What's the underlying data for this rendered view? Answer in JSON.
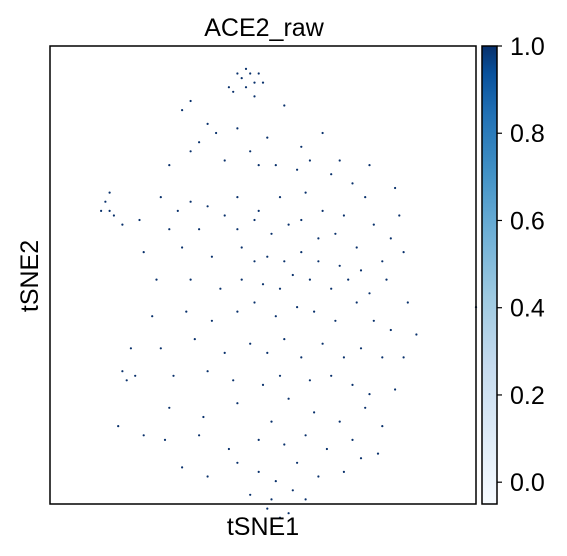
{
  "chart_data": {
    "type": "scatter",
    "title": "ACE2_raw",
    "xlabel": "tSNE1",
    "ylabel": "tSNE2",
    "x_ticks_shown": false,
    "y_ticks_shown": false,
    "grid": false,
    "xlim": [
      -50,
      50
    ],
    "ylim": [
      -50,
      50
    ],
    "colormap": "Blues",
    "color_low": "#f7fbff",
    "color_high": "#08306b",
    "colorbar": {
      "vmin": -0.05,
      "vmax": 1.0,
      "ticks": [
        0.0,
        0.2,
        0.4,
        0.6,
        0.8,
        1.0
      ],
      "tick_labels": [
        "0.0",
        "0.2",
        "0.4",
        "0.6",
        "0.8",
        "1.0"
      ]
    },
    "background_value": 0,
    "expressed_value": 1,
    "series": [
      {
        "value": 1,
        "points": [
          [
            -8,
            41
          ],
          [
            -6,
            44
          ],
          [
            -5,
            43
          ],
          [
            -4,
            45
          ],
          [
            -3,
            44
          ],
          [
            -2,
            42
          ],
          [
            -7,
            40
          ],
          [
            -4,
            41
          ],
          [
            -1,
            44
          ],
          [
            -2,
            39
          ],
          [
            0,
            42
          ],
          [
            -19,
            36
          ],
          [
            -17,
            38
          ],
          [
            -13,
            33
          ],
          [
            -11,
            31
          ],
          [
            -15,
            29
          ],
          [
            -6,
            32
          ],
          [
            5,
            37
          ],
          [
            1,
            30
          ],
          [
            9,
            28
          ],
          [
            14,
            31
          ],
          [
            18,
            25
          ],
          [
            -22,
            24
          ],
          [
            -17,
            27
          ],
          [
            -9,
            25
          ],
          [
            -3,
            27
          ],
          [
            -1,
            24
          ],
          [
            3,
            24
          ],
          [
            8,
            23
          ],
          [
            11,
            25
          ],
          [
            16,
            22
          ],
          [
            21,
            20
          ],
          [
            25,
            24
          ],
          [
            -37,
            16
          ],
          [
            -36,
            18
          ],
          [
            -36,
            14
          ],
          [
            -35,
            13
          ],
          [
            -33,
            11
          ],
          [
            -38,
            14
          ],
          [
            -24,
            17
          ],
          [
            -20,
            14
          ],
          [
            -17,
            16
          ],
          [
            -13,
            15
          ],
          [
            -6,
            17
          ],
          [
            -1,
            14
          ],
          [
            4,
            17
          ],
          [
            10,
            18
          ],
          [
            14,
            14
          ],
          [
            19,
            13
          ],
          [
            24,
            17
          ],
          [
            31,
            19
          ],
          [
            -29,
            12
          ],
          [
            -22,
            10
          ],
          [
            -15,
            10
          ],
          [
            -9,
            13
          ],
          [
            -6,
            10
          ],
          [
            -2,
            12
          ],
          [
            2,
            9
          ],
          [
            6,
            11
          ],
          [
            9,
            12
          ],
          [
            13,
            8
          ],
          [
            17,
            9
          ],
          [
            22,
            6
          ],
          [
            26,
            11
          ],
          [
            30,
            8
          ],
          [
            32,
            13
          ],
          [
            -28,
            5
          ],
          [
            -19,
            6
          ],
          [
            -12,
            4
          ],
          [
            -5,
            6
          ],
          [
            -2,
            3
          ],
          [
            1,
            4
          ],
          [
            5,
            3
          ],
          [
            9,
            5
          ],
          [
            13,
            3
          ],
          [
            18,
            2
          ],
          [
            23,
            1
          ],
          [
            28,
            3
          ],
          [
            33,
            5
          ],
          [
            -25,
            -1
          ],
          [
            -17,
            -1
          ],
          [
            -10,
            -3
          ],
          [
            -5,
            -1
          ],
          [
            0,
            -2
          ],
          [
            4,
            -3
          ],
          [
            7,
            0
          ],
          [
            11,
            -1
          ],
          [
            16,
            -3
          ],
          [
            20,
            -1
          ],
          [
            25,
            -4
          ],
          [
            29,
            -1
          ],
          [
            34,
            -6
          ],
          [
            -26,
            -9
          ],
          [
            -18,
            -8
          ],
          [
            -12,
            -10
          ],
          [
            -6,
            -8
          ],
          [
            -2,
            -6
          ],
          [
            3,
            -9
          ],
          [
            8,
            -7
          ],
          [
            12,
            -8
          ],
          [
            17,
            -10
          ],
          [
            22,
            -6
          ],
          [
            26,
            -10
          ],
          [
            30,
            -12
          ],
          [
            36,
            -13
          ],
          [
            -31,
            -16
          ],
          [
            -24,
            -16
          ],
          [
            -16,
            -14
          ],
          [
            -9,
            -17
          ],
          [
            -3,
            -15
          ],
          [
            1,
            -17
          ],
          [
            5,
            -14
          ],
          [
            9,
            -18
          ],
          [
            14,
            -15
          ],
          [
            19,
            -18
          ],
          [
            23,
            -16
          ],
          [
            28,
            -18
          ],
          [
            33,
            -18
          ],
          [
            -33,
            -21
          ],
          [
            -32,
            -23
          ],
          [
            -30,
            -22
          ],
          [
            -21,
            -22
          ],
          [
            -13,
            -21
          ],
          [
            -7,
            -23
          ],
          [
            0,
            -24
          ],
          [
            4,
            -22
          ],
          [
            11,
            -23
          ],
          [
            16,
            -22
          ],
          [
            21,
            -24
          ],
          [
            25,
            -26
          ],
          [
            31,
            -25
          ],
          [
            -22,
            -29
          ],
          [
            -14,
            -31
          ],
          [
            -6,
            -28
          ],
          [
            2,
            -32
          ],
          [
            6,
            -27
          ],
          [
            12,
            -30
          ],
          [
            18,
            -32
          ],
          [
            24,
            -29
          ],
          [
            28,
            -33
          ],
          [
            -34,
            -33
          ],
          [
            -28,
            -35
          ],
          [
            -23,
            -36
          ],
          [
            -15,
            -35
          ],
          [
            -8,
            -38
          ],
          [
            -1,
            -36
          ],
          [
            5,
            -37
          ],
          [
            10,
            -35
          ],
          [
            15,
            -38
          ],
          [
            21,
            -36
          ],
          [
            27,
            -39
          ],
          [
            -19,
            -42
          ],
          [
            -13,
            -44
          ],
          [
            -6,
            -41
          ],
          [
            -1,
            -43
          ],
          [
            3,
            -45
          ],
          [
            8,
            -41
          ],
          [
            13,
            -44
          ],
          [
            19,
            -43
          ],
          [
            23,
            -40
          ],
          [
            -3,
            -48
          ],
          [
            2,
            -49
          ],
          [
            7,
            -47
          ],
          [
            10,
            -49
          ],
          [
            1,
            -51
          ],
          [
            4,
            -53
          ],
          [
            6,
            -52
          ],
          [
            50,
            -7
          ]
        ]
      }
    ]
  }
}
